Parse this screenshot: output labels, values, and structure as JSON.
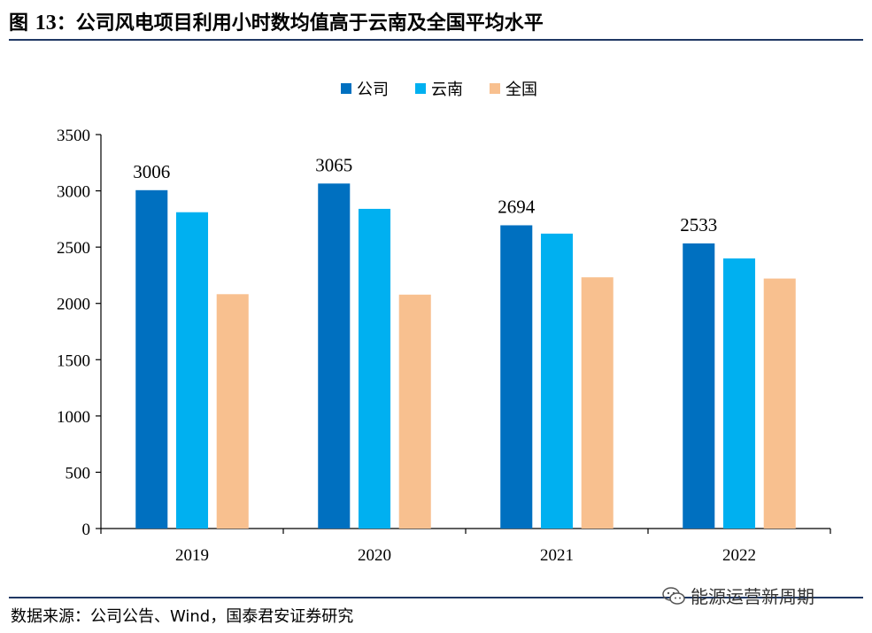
{
  "header": {
    "figure_label": "图",
    "figure_number": "13",
    "title": "：公司风电项目利用小时数均值高于云南及全国平均水平"
  },
  "footer": {
    "source": "数据来源：公司公告、Wind，国泰君安证券研究",
    "watermark": "能源运营新周期"
  },
  "colors": {
    "company": "#0070C0",
    "yunnan": "#00B0F0",
    "national": "#F8C08F",
    "rule": "#203864"
  },
  "chart_data": {
    "type": "bar",
    "title": "公司风电项目利用小时数均值高于云南及全国平均水平",
    "categories": [
      "2019",
      "2020",
      "2021",
      "2022"
    ],
    "series": [
      {
        "name": "公司",
        "values": [
          3006,
          3065,
          2694,
          2533
        ],
        "labels": [
          "3006",
          "3065",
          "2694",
          "2533"
        ]
      },
      {
        "name": "云南",
        "values": [
          2810,
          2840,
          2620,
          2400
        ]
      },
      {
        "name": "全国",
        "values": [
          2082,
          2078,
          2232,
          2221
        ]
      }
    ],
    "ylim": [
      0,
      3500
    ],
    "yticks": [
      0,
      500,
      1000,
      1500,
      2000,
      2500,
      3000,
      3500
    ],
    "ytick_labels": [
      "0",
      "500",
      "1000",
      "1500",
      "2000",
      "2500",
      "3000",
      "3500"
    ],
    "xlabel": "",
    "ylabel": "",
    "legend_position": "top-center",
    "grid": false
  }
}
